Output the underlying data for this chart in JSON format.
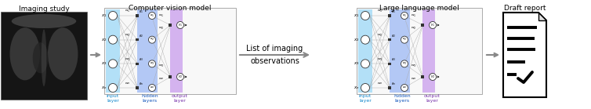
{
  "title_cv": "Computer vision model",
  "title_llm": "Large language model",
  "title_img": "Imaging study",
  "title_report": "Draft report",
  "middle_text_line1": "List of imaging",
  "middle_text_line2": "observations",
  "label_input": "input\nlayer",
  "label_hidden": "hidden\nlayers",
  "label_output": "output\nlayer",
  "color_input_bg": "#b3e0f7",
  "color_hidden_bg": "#b3c8f5",
  "color_output_bg": "#d4b3ef",
  "color_box_border": "#aaaaaa",
  "color_arrow": "#888888",
  "color_node_fill": "#ffffff",
  "color_node_border": "#333333",
  "color_input_text": "#1188cc",
  "color_hidden_text": "#1155bb",
  "color_output_text": "#7733aa",
  "color_square_node": "#333333",
  "fig_width": 7.54,
  "fig_height": 1.39
}
